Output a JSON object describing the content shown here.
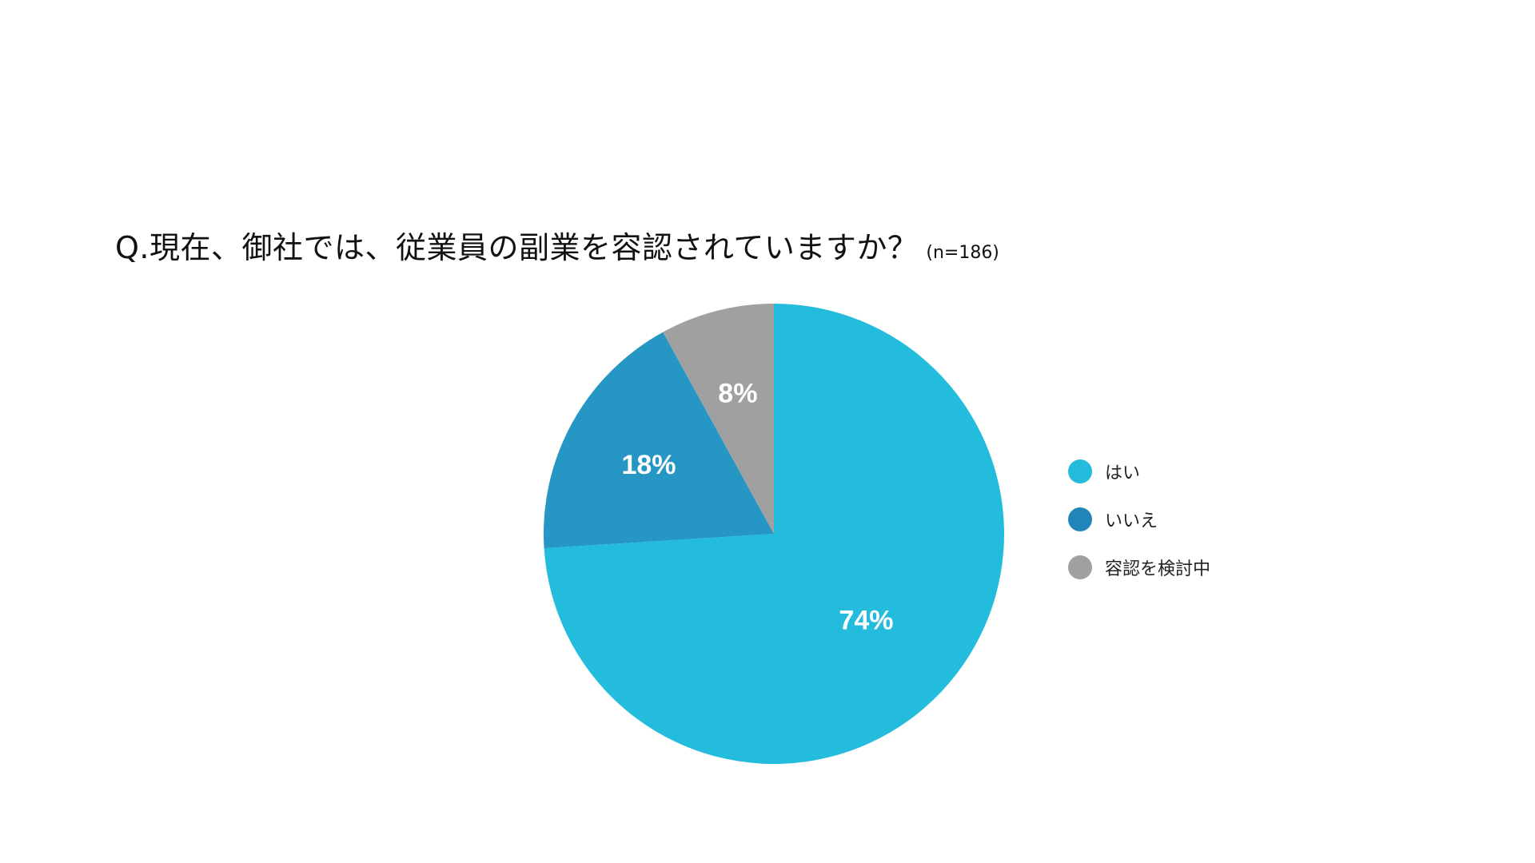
{
  "title": {
    "main": "Q.現在、御社では、従業員の副業を容認されていますか？",
    "sample": "(n=186)"
  },
  "chart_data": {
    "type": "pie",
    "title": "Q.現在、御社では、従業員の副業を容認されていますか？ (n=186)",
    "unit": "%",
    "start": "12 o'clock",
    "direction": "clockwise",
    "legend_position": "right",
    "slices": [
      {
        "label": "はい",
        "value": 74,
        "display": "74%",
        "color": "#24BCDC"
      },
      {
        "label": "いいえ",
        "value": 18,
        "display": "18%",
        "color": "#2696C4"
      },
      {
        "label": "容認を検討中",
        "value": 8,
        "display": "8%",
        "color": "#A0A0A0"
      }
    ]
  },
  "legend": {
    "items": [
      {
        "label": "はい",
        "color": "#24BCDC"
      },
      {
        "label": "いいえ",
        "color": "#2086BA"
      },
      {
        "label": "容認を検討中",
        "color": "#A0A0A0"
      }
    ]
  }
}
